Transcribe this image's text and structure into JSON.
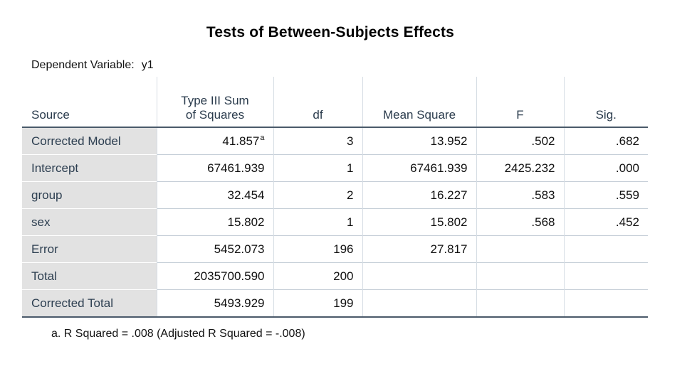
{
  "title": "Tests of Between-Subjects Effects",
  "dependent_variable": {
    "label": "Dependent Variable:",
    "value": "y1"
  },
  "columns": {
    "source": "Source",
    "ss_line1": "Type III Sum",
    "ss_line2": "of Squares",
    "df": "df",
    "ms": "Mean Square",
    "f": "F",
    "sig": "Sig."
  },
  "rows": [
    {
      "source": "Corrected Model",
      "ss": "41.857",
      "ss_note": "a",
      "df": "3",
      "ms": "13.952",
      "f": ".502",
      "sig": ".682"
    },
    {
      "source": "Intercept",
      "ss": "67461.939",
      "df": "1",
      "ms": "67461.939",
      "f": "2425.232",
      "sig": ".000"
    },
    {
      "source": "group",
      "ss": "32.454",
      "df": "2",
      "ms": "16.227",
      "f": ".583",
      "sig": ".559"
    },
    {
      "source": "sex",
      "ss": "15.802",
      "df": "1",
      "ms": "15.802",
      "f": ".568",
      "sig": ".452"
    },
    {
      "source": "Error",
      "ss": "5452.073",
      "df": "196",
      "ms": "27.817",
      "f": "",
      "sig": ""
    },
    {
      "source": "Total",
      "ss": "2035700.590",
      "df": "200",
      "ms": "",
      "f": "",
      "sig": ""
    },
    {
      "source": "Corrected Total",
      "ss": "5493.929",
      "df": "199",
      "ms": "",
      "f": "",
      "sig": ""
    }
  ],
  "footnote": "a. R Squared = .008 (Adjusted R Squared = -.008)"
}
